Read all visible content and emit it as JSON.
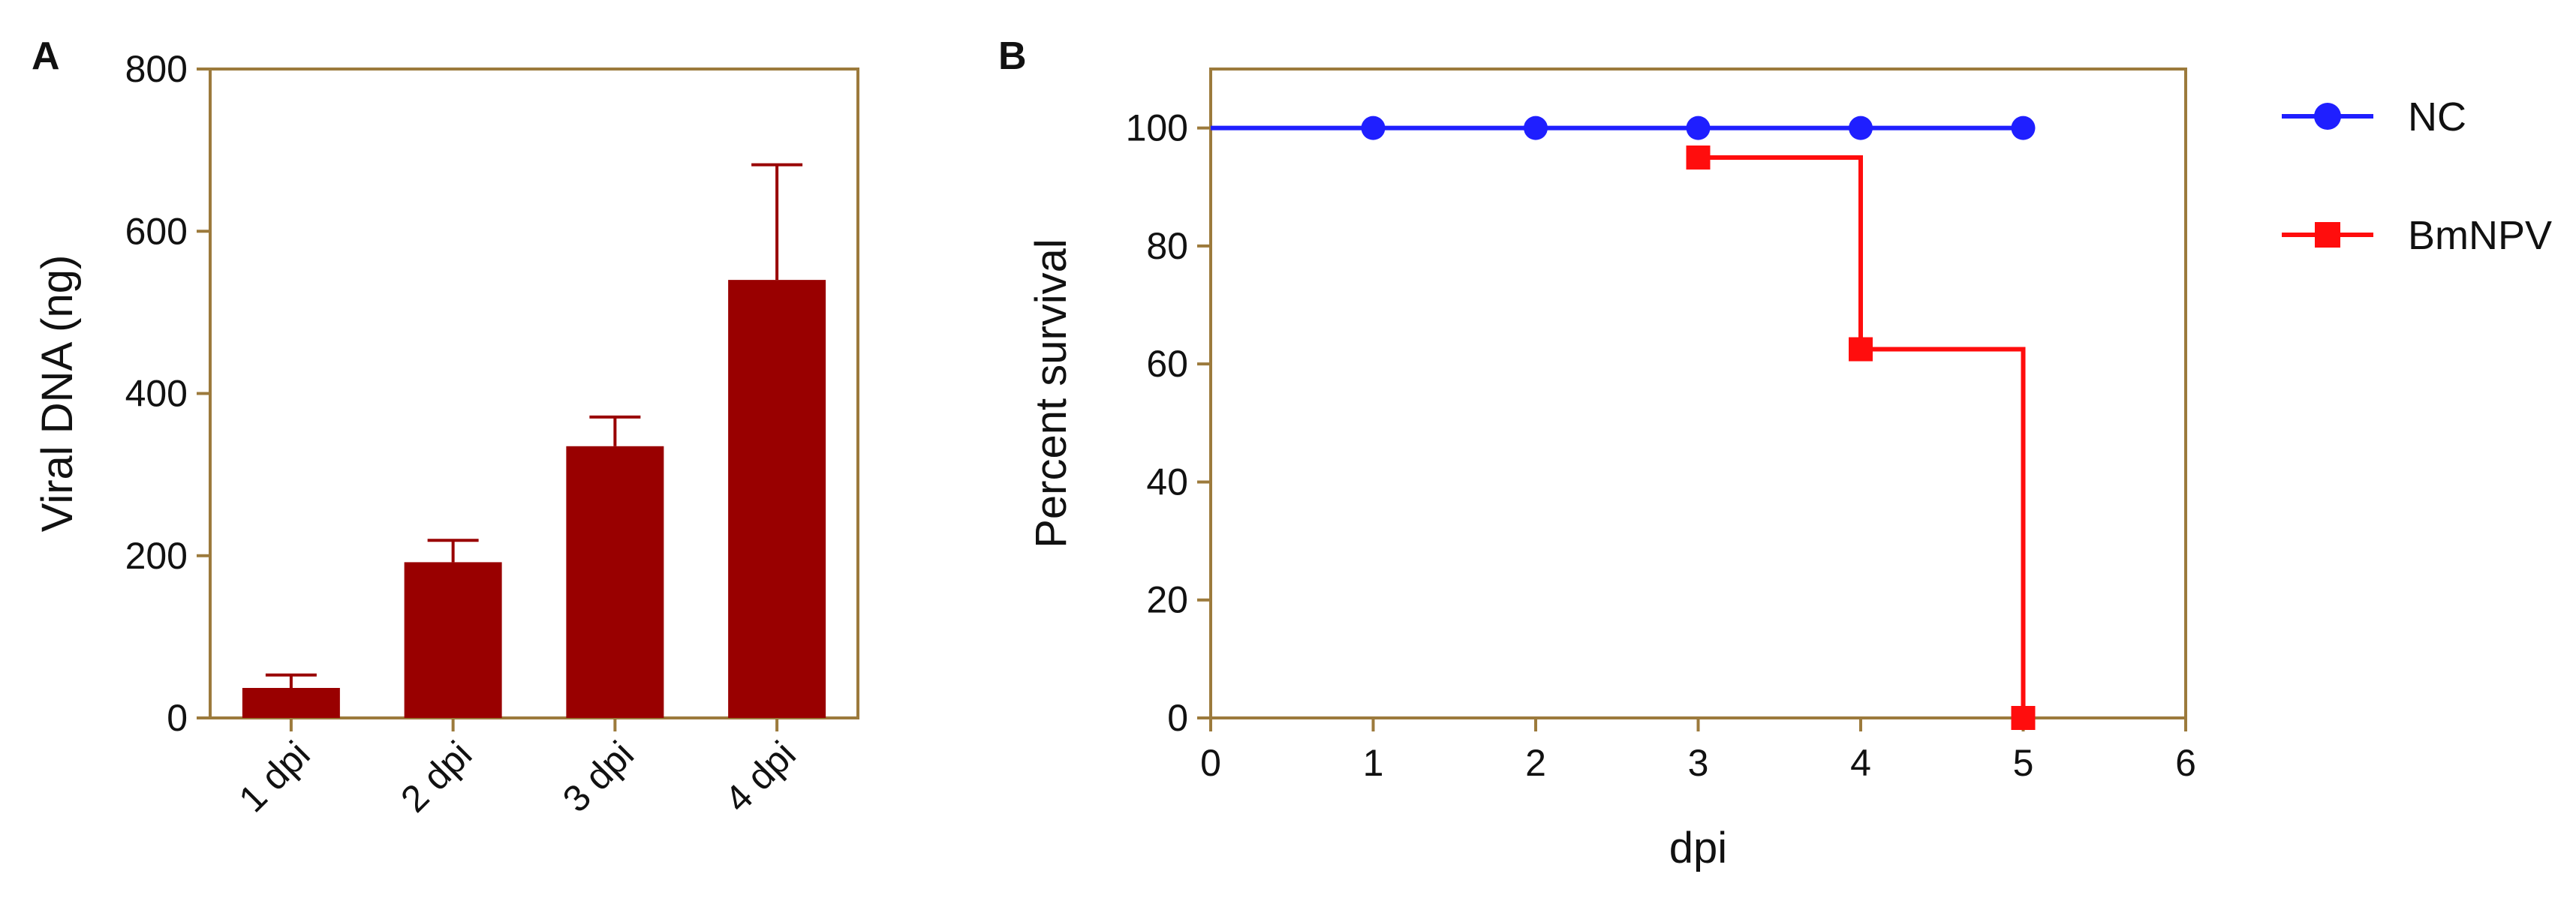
{
  "colors": {
    "axis": "#9c7a3c",
    "bar": "#990000",
    "nc": "#1f1fff",
    "bmnpv": "#ff0d0d",
    "text": "#111111"
  },
  "chart_data": [
    {
      "panel": "A",
      "type": "bar",
      "ylabel": "Viral DNA (ng)",
      "xlabel": "",
      "ylim": [
        0,
        800
      ],
      "yticks": [
        "0",
        "200",
        "400",
        "600",
        "800"
      ],
      "categories": [
        "1 dpi",
        "2 dpi",
        "3 dpi",
        "4 dpi"
      ],
      "values": [
        37,
        192,
        335,
        540
      ],
      "errors": [
        16,
        27,
        36,
        142
      ],
      "grid": false
    },
    {
      "panel": "B",
      "type": "line",
      "subtype": "kaplan-meier survival",
      "xlabel": "dpi",
      "ylabel": "Percent survival",
      "xlim": [
        0,
        6
      ],
      "ylim": [
        0,
        110
      ],
      "xticks": [
        "0",
        "1",
        "2",
        "3",
        "4",
        "5",
        "6"
      ],
      "yticks": [
        "0",
        "20",
        "40",
        "60",
        "80",
        "100"
      ],
      "legend_position": "top-right, outside plot",
      "grid": false,
      "series": [
        {
          "name": "NC",
          "marker": "circle",
          "line_x": [
            0,
            5
          ],
          "line_y": [
            100,
            100
          ],
          "marker_x": [
            1,
            2,
            3,
            4,
            5
          ],
          "marker_y": [
            100,
            100,
            100,
            100,
            100
          ]
        },
        {
          "name": "BmNPV",
          "marker": "square",
          "line_x": [
            3,
            4,
            4,
            5,
            5
          ],
          "line_y": [
            95,
            95,
            62.5,
            62.5,
            0
          ],
          "marker_x": [
            3,
            4,
            5
          ],
          "marker_y": [
            95,
            62.5,
            0
          ]
        }
      ]
    }
  ]
}
